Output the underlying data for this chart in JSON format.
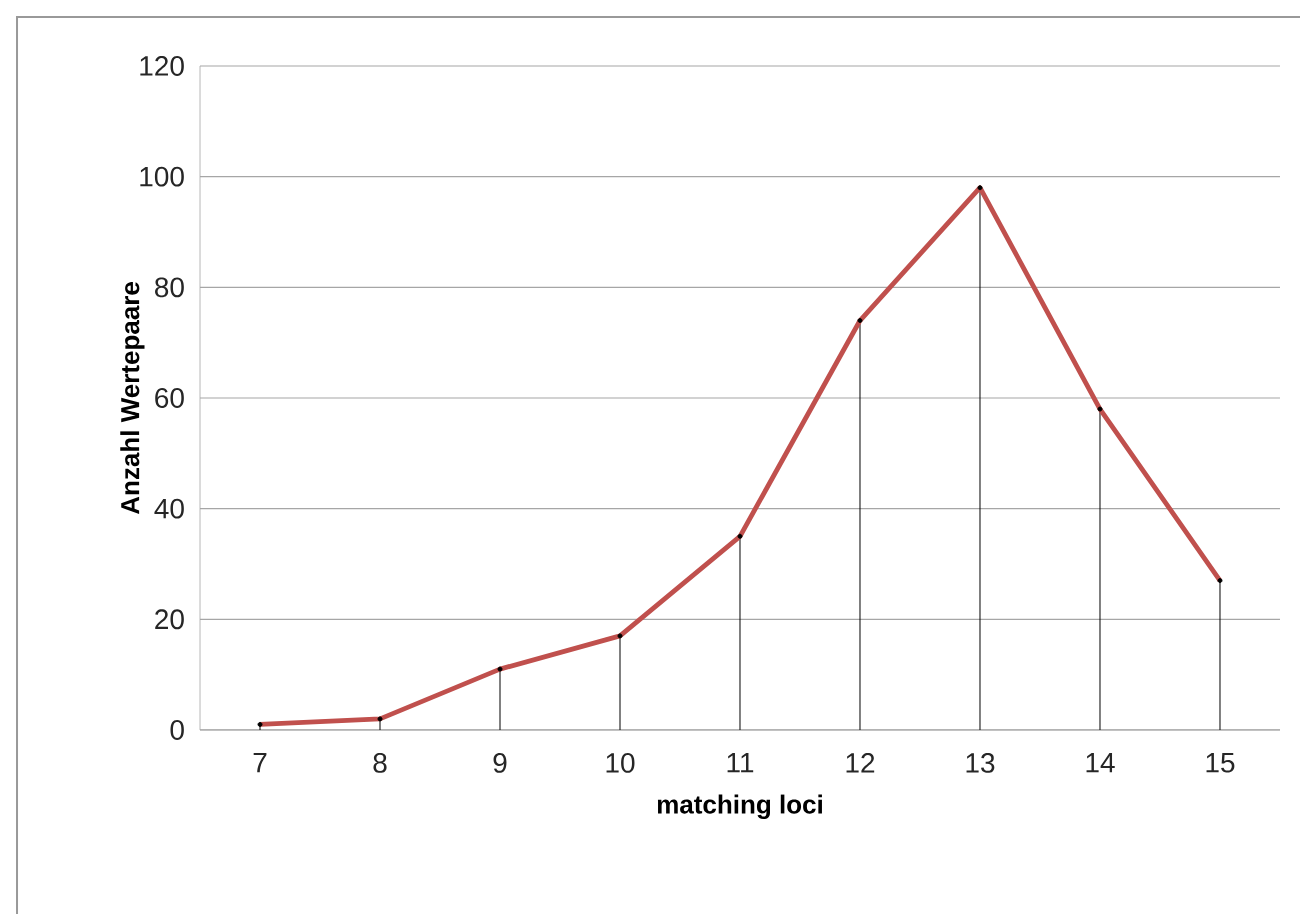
{
  "chart_data": {
    "type": "line",
    "xlabel": "matching loci",
    "ylabel": "Anzahl Wertepaare",
    "categories": [
      "7",
      "8",
      "9",
      "10",
      "11",
      "12",
      "13",
      "14",
      "15"
    ],
    "series": [
      {
        "type": "lollipop",
        "color": "#000000",
        "values": [
          1,
          2,
          11,
          17,
          35,
          74,
          98,
          58,
          27
        ]
      },
      {
        "color": "#c0504d",
        "values": [
          1,
          2,
          11,
          17,
          35,
          74,
          98,
          58,
          27
        ]
      }
    ],
    "ylim": [
      0,
      120
    ],
    "yticks": [
      0,
      20,
      40,
      60,
      80,
      100,
      120
    ],
    "grid": "y"
  }
}
